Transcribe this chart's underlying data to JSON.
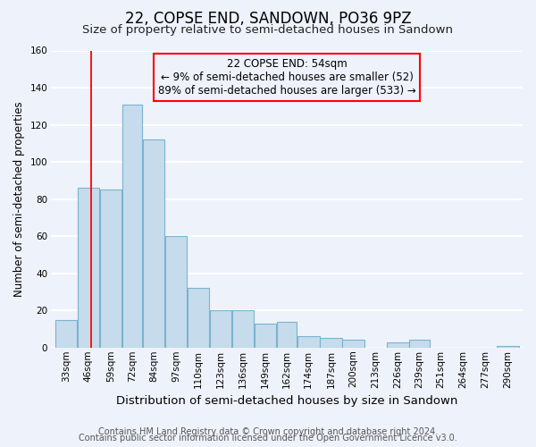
{
  "title": "22, COPSE END, SANDOWN, PO36 9PZ",
  "subtitle": "Size of property relative to semi-detached houses in Sandown",
  "xlabel": "Distribution of semi-detached houses by size in Sandown",
  "ylabel": "Number of semi-detached properties",
  "bar_labels": [
    "33sqm",
    "46sqm",
    "59sqm",
    "72sqm",
    "84sqm",
    "97sqm",
    "110sqm",
    "123sqm",
    "136sqm",
    "149sqm",
    "162sqm",
    "174sqm",
    "187sqm",
    "200sqm",
    "213sqm",
    "226sqm",
    "239sqm",
    "251sqm",
    "264sqm",
    "277sqm",
    "290sqm"
  ],
  "bar_values": [
    15,
    86,
    85,
    131,
    112,
    60,
    32,
    20,
    20,
    13,
    14,
    6,
    5,
    4,
    0,
    3,
    4,
    0,
    0,
    0,
    1
  ],
  "bin_edges": [
    33,
    46,
    59,
    72,
    84,
    97,
    110,
    123,
    136,
    149,
    162,
    174,
    187,
    200,
    213,
    226,
    239,
    251,
    264,
    277,
    290,
    303
  ],
  "bar_color": "#c6dcec",
  "bar_edge_color": "#7ab3cf",
  "ylim": [
    0,
    160
  ],
  "yticks": [
    0,
    20,
    40,
    60,
    80,
    100,
    120,
    140,
    160
  ],
  "property_line_x": 54,
  "property_line_label": "22 COPSE END: 54sqm",
  "smaller_pct": 9,
  "smaller_count": 52,
  "larger_pct": 89,
  "larger_count": 533,
  "footer_line1": "Contains HM Land Registry data © Crown copyright and database right 2024.",
  "footer_line2": "Contains public sector information licensed under the Open Government Licence v3.0.",
  "background_color": "#eef2fb",
  "grid_color": "white",
  "title_fontsize": 12,
  "subtitle_fontsize": 9.5,
  "xlabel_fontsize": 9.5,
  "ylabel_fontsize": 8.5,
  "tick_fontsize": 7.5,
  "annotation_fontsize": 8.5,
  "footer_fontsize": 7
}
